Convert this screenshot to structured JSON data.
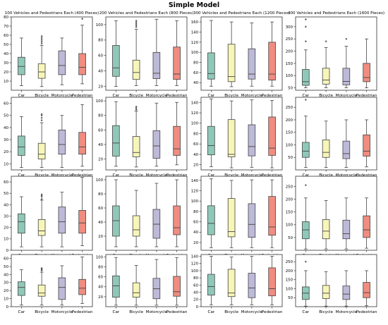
{
  "title": "Simple Model",
  "colors": {
    "Car": "#8fc8b8",
    "Bicycle": "#f7f6b9",
    "Motorcycle": "#bdb9d8",
    "Pedestrian": "#f08c80"
  },
  "chart_data": [
    {
      "type": "box",
      "title": "100 Vehicles and Pedestrians Each (400 Pieces)",
      "row": 0,
      "col": 0,
      "categories": [
        "Car",
        "Bicycle",
        "Motorcycle",
        "Pedestrian"
      ],
      "ylim": [
        0,
        80
      ],
      "yticks": [
        10,
        20,
        30,
        40,
        50,
        60,
        70,
        80
      ],
      "boxes": [
        {
          "whislo": 5,
          "q1": 17,
          "med": 26,
          "q3": 36,
          "whishi": 57,
          "fliers": []
        },
        {
          "whislo": 4,
          "q1": 13,
          "med": 20,
          "q3": 29,
          "whishi": 49,
          "fliers": [
            51,
            53,
            55,
            57,
            59
          ]
        },
        {
          "whislo": 6,
          "q1": 17,
          "med": 27,
          "q3": 43,
          "whishi": 57,
          "fliers": []
        },
        {
          "whislo": 7,
          "q1": 17,
          "med": 25,
          "q3": 40,
          "whishi": 71,
          "fliers": [
            78
          ]
        }
      ]
    },
    {
      "type": "box",
      "title": "200 Vehicles and Pedestrians Each (800 Pieces)",
      "row": 0,
      "col": 1,
      "categories": [
        "Car",
        "Bicycle",
        "Motorcycle",
        "Pedestrian"
      ],
      "ylim": [
        15,
        110
      ],
      "yticks": [
        20,
        40,
        60,
        80,
        100
      ],
      "boxes": [
        {
          "whislo": 20,
          "q1": 33,
          "med": 44,
          "q3": 73,
          "whishi": 105,
          "fliers": []
        },
        {
          "whislo": 21,
          "q1": 29,
          "med": 38,
          "q3": 54,
          "whishi": 94,
          "fliers": [
            97,
            99,
            101,
            103,
            105
          ]
        },
        {
          "whislo": 21,
          "q1": 30,
          "med": 37,
          "q3": 64,
          "whishi": 107,
          "fliers": []
        },
        {
          "whislo": 21,
          "q1": 29,
          "med": 36,
          "q3": 71,
          "whishi": 105,
          "fliers": []
        }
      ]
    },
    {
      "type": "box",
      "title": "300 Vehicles and Pedestrians Each (1200 Pieces)",
      "row": 0,
      "col": 2,
      "categories": [
        "Car",
        "Bicycle",
        "Motorcycle",
        "Pedestrian"
      ],
      "ylim": [
        25,
        170
      ],
      "yticks": [
        40,
        60,
        80,
        100,
        120,
        140,
        160
      ],
      "boxes": [
        {
          "whislo": 33,
          "q1": 47,
          "med": 58,
          "q3": 99,
          "whishi": 163,
          "fliers": []
        },
        {
          "whislo": 32,
          "q1": 42,
          "med": 52,
          "q3": 116,
          "whishi": 160,
          "fliers": []
        },
        {
          "whislo": 33,
          "q1": 47,
          "med": 57,
          "q3": 107,
          "whishi": 158,
          "fliers": []
        },
        {
          "whislo": 33,
          "q1": 45,
          "med": 57,
          "q3": 120,
          "whishi": 160,
          "fliers": []
        }
      ]
    },
    {
      "type": "box",
      "title": "400 Vehicles and Pedestrians Each (1600 Pieces)",
      "row": 0,
      "col": 3,
      "categories": [
        "Car",
        "Bicycle",
        "Motorcycle",
        "Pedestrian"
      ],
      "ylim": [
        40,
        340
      ],
      "yticks": [
        50,
        100,
        150,
        200,
        250,
        300
      ],
      "boxes": [
        {
          "whislo": 50,
          "q1": 60,
          "med": 75,
          "q3": 125,
          "whishi": 205,
          "fliers": [
            240,
            300,
            330
          ]
        },
        {
          "whislo": 50,
          "q1": 65,
          "med": 82,
          "q3": 130,
          "whishi": 215,
          "fliers": [
            240
          ]
        },
        {
          "whislo": 50,
          "q1": 62,
          "med": 76,
          "q3": 130,
          "whishi": 220,
          "fliers": [
            250
          ]
        },
        {
          "whislo": 50,
          "q1": 75,
          "med": 92,
          "q3": 150,
          "whishi": 250,
          "fliers": []
        }
      ]
    },
    {
      "type": "box",
      "title": "",
      "row": 1,
      "col": 0,
      "categories": [
        "Car",
        "Bicycle",
        "Motorcycle",
        "Pedestrian"
      ],
      "ylim": [
        5,
        65
      ],
      "yticks": [
        10,
        20,
        30,
        40,
        50,
        60
      ],
      "boxes": [
        {
          "whislo": 7,
          "q1": 17,
          "med": 24,
          "q3": 33,
          "whishi": 49,
          "fliers": []
        },
        {
          "whislo": 7,
          "q1": 14,
          "med": 18,
          "q3": 27,
          "whishi": 44,
          "fliers": [
            46,
            48,
            50,
            51
          ]
        },
        {
          "whislo": 7,
          "q1": 18,
          "med": 26,
          "q3": 38,
          "whishi": 50,
          "fliers": []
        },
        {
          "whislo": 8,
          "q1": 18,
          "med": 24,
          "q3": 36,
          "whishi": 59,
          "fliers": []
        }
      ]
    },
    {
      "type": "box",
      "title": "",
      "row": 1,
      "col": 1,
      "categories": [
        "Car",
        "Bicycle",
        "Motorcycle",
        "Pedestrian"
      ],
      "ylim": [
        5,
        105
      ],
      "yticks": [
        20,
        40,
        60,
        80,
        100
      ],
      "boxes": [
        {
          "whislo": 10,
          "q1": 24,
          "med": 42,
          "q3": 66,
          "whishi": 99,
          "fliers": []
        },
        {
          "whislo": 9,
          "q1": 23,
          "med": 29,
          "q3": 51,
          "whishi": 86,
          "fliers": [
            88,
            90,
            92
          ]
        },
        {
          "whislo": 10,
          "q1": 21,
          "med": 38,
          "q3": 59,
          "whishi": 97,
          "fliers": []
        },
        {
          "whislo": 12,
          "q1": 25,
          "med": 34,
          "q3": 65,
          "whishi": 98,
          "fliers": []
        }
      ]
    },
    {
      "type": "box",
      "title": "",
      "row": 1,
      "col": 2,
      "categories": [
        "Car",
        "Bicycle",
        "Motorcycle",
        "Pedestrian"
      ],
      "ylim": [
        10,
        150
      ],
      "yticks": [
        20,
        40,
        60,
        80,
        100,
        120,
        140
      ],
      "boxes": [
        {
          "whislo": 16,
          "q1": 39,
          "med": 57,
          "q3": 94,
          "whishi": 147,
          "fliers": []
        },
        {
          "whislo": 14,
          "q1": 35,
          "med": 40,
          "q3": 107,
          "whishi": 143,
          "fliers": []
        },
        {
          "whislo": 15,
          "q1": 37,
          "med": 55,
          "q3": 97,
          "whishi": 145,
          "fliers": []
        },
        {
          "whislo": 14,
          "q1": 38,
          "med": 52,
          "q3": 112,
          "whishi": 144,
          "fliers": []
        }
      ]
    },
    {
      "type": "box",
      "title": "",
      "row": 1,
      "col": 3,
      "categories": [
        "Car",
        "Bicycle",
        "Motorcycle",
        "Pedestrian"
      ],
      "ylim": [
        0,
        290
      ],
      "yticks": [
        50,
        100,
        150,
        200,
        250
      ],
      "boxes": [
        {
          "whislo": 10,
          "q1": 50,
          "med": 75,
          "q3": 110,
          "whishi": 215,
          "fliers": [
            280
          ]
        },
        {
          "whislo": 10,
          "q1": 50,
          "med": 70,
          "q3": 120,
          "whishi": 195,
          "fliers": []
        },
        {
          "whislo": 10,
          "q1": 45,
          "med": 65,
          "q3": 115,
          "whishi": 200,
          "fliers": []
        },
        {
          "whislo": 12,
          "q1": 55,
          "med": 75,
          "q3": 140,
          "whishi": 200,
          "fliers": []
        }
      ]
    },
    {
      "type": "box",
      "title": "",
      "row": 2,
      "col": 0,
      "categories": [
        "Car",
        "Bicycle",
        "Motorcycle",
        "Pedestrian"
      ],
      "ylim": [
        0,
        65
      ],
      "yticks": [
        0,
        10,
        20,
        30,
        40,
        50,
        60
      ],
      "boxes": [
        {
          "whislo": 3,
          "q1": 15,
          "med": 25,
          "q3": 32,
          "whishi": 47,
          "fliers": []
        },
        {
          "whislo": 3,
          "q1": 13,
          "med": 17,
          "q3": 27,
          "whishi": 44,
          "fliers": [
            45,
            47,
            48,
            49
          ]
        },
        {
          "whislo": 3,
          "q1": 15,
          "med": 25,
          "q3": 38,
          "whishi": 51,
          "fliers": []
        },
        {
          "whislo": 4,
          "q1": 15,
          "med": 24,
          "q3": 35,
          "whishi": 64,
          "fliers": []
        }
      ]
    },
    {
      "type": "box",
      "title": "",
      "row": 2,
      "col": 1,
      "categories": [
        "Car",
        "Bicycle",
        "Motorcycle",
        "Pedestrian"
      ],
      "ylim": [
        0,
        105
      ],
      "yticks": [
        20,
        40,
        60,
        80,
        100
      ],
      "boxes": [
        {
          "whislo": 5,
          "q1": 20,
          "med": 42,
          "q3": 63,
          "whishi": 100,
          "fliers": []
        },
        {
          "whislo": 5,
          "q1": 20,
          "med": 29,
          "q3": 49,
          "whishi": 85,
          "fliers": []
        },
        {
          "whislo": 5,
          "q1": 17,
          "med": 37,
          "q3": 58,
          "whishi": 95,
          "fliers": []
        },
        {
          "whislo": 5,
          "q1": 22,
          "med": 32,
          "q3": 63,
          "whishi": 100,
          "fliers": []
        }
      ]
    },
    {
      "type": "box",
      "title": "",
      "row": 2,
      "col": 2,
      "categories": [
        "Car",
        "Bicycle",
        "Motorcycle",
        "Pedestrian"
      ],
      "ylim": [
        5,
        148
      ],
      "yticks": [
        20,
        40,
        60,
        80,
        100,
        120,
        140
      ],
      "boxes": [
        {
          "whislo": 10,
          "q1": 35,
          "med": 57,
          "q3": 91,
          "whishi": 143,
          "fliers": []
        },
        {
          "whislo": 10,
          "q1": 31,
          "med": 41,
          "q3": 105,
          "whishi": 140,
          "fliers": []
        },
        {
          "whislo": 10,
          "q1": 30,
          "med": 55,
          "q3": 95,
          "whishi": 141,
          "fliers": []
        },
        {
          "whislo": 10,
          "q1": 34,
          "med": 50,
          "q3": 109,
          "whishi": 141,
          "fliers": []
        }
      ]
    },
    {
      "type": "box",
      "title": "",
      "row": 2,
      "col": 3,
      "categories": [
        "Car",
        "Bicycle",
        "Motorcycle",
        "Pedestrian"
      ],
      "ylim": [
        0,
        290
      ],
      "yticks": [
        50,
        100,
        150,
        200,
        250
      ],
      "boxes": [
        {
          "whislo": 5,
          "q1": 45,
          "med": 80,
          "q3": 112,
          "whishi": 205,
          "fliers": [
            255
          ]
        },
        {
          "whislo": 5,
          "q1": 45,
          "med": 75,
          "q3": 120,
          "whishi": 195,
          "fliers": []
        },
        {
          "whislo": 5,
          "q1": 45,
          "med": 65,
          "q3": 118,
          "whishi": 205,
          "fliers": []
        },
        {
          "whislo": 8,
          "q1": 50,
          "med": 80,
          "q3": 135,
          "whishi": 205,
          "fliers": []
        }
      ]
    },
    {
      "type": "box",
      "title": "",
      "row": 3,
      "col": 0,
      "categories": [
        "Car",
        "Bicycle",
        "Motorcycle",
        "Pedestrian"
      ],
      "ylim": [
        0,
        65
      ],
      "yticks": [
        0,
        10,
        20,
        30,
        40,
        50,
        60
      ],
      "boxes": [
        {
          "whislo": 2,
          "q1": 14,
          "med": 24,
          "q3": 31,
          "whishi": 46,
          "fliers": []
        },
        {
          "whislo": 2,
          "q1": 13,
          "med": 17,
          "q3": 27,
          "whishi": 43,
          "fliers": [
            45,
            46,
            47,
            48
          ]
        },
        {
          "whislo": 2,
          "q1": 9,
          "med": 24,
          "q3": 36,
          "whishi": 51,
          "fliers": []
        },
        {
          "whislo": 4,
          "q1": 15,
          "med": 23,
          "q3": 34,
          "whishi": 62,
          "fliers": []
        }
      ]
    },
    {
      "type": "box",
      "title": "",
      "row": 3,
      "col": 1,
      "categories": [
        "Car",
        "Bicycle",
        "Motorcycle",
        "Pedestrian"
      ],
      "ylim": [
        0,
        105
      ],
      "yticks": [
        20,
        40,
        60,
        80,
        100
      ],
      "boxes": [
        {
          "whislo": 3,
          "q1": 19,
          "med": 42,
          "q3": 62,
          "whishi": 99,
          "fliers": []
        },
        {
          "whislo": 3,
          "q1": 19,
          "med": 28,
          "q3": 48,
          "whishi": 83,
          "fliers": []
        },
        {
          "whislo": 3,
          "q1": 16,
          "med": 36,
          "q3": 57,
          "whishi": 95,
          "fliers": []
        },
        {
          "whislo": 3,
          "q1": 21,
          "med": 30,
          "q3": 61,
          "whishi": 99,
          "fliers": []
        }
      ]
    },
    {
      "type": "box",
      "title": "",
      "row": 3,
      "col": 2,
      "categories": [
        "Car",
        "Bicycle",
        "Motorcycle",
        "Pedestrian"
      ],
      "ylim": [
        0,
        145
      ],
      "yticks": [
        0,
        20,
        40,
        60,
        80,
        100,
        120,
        140
      ],
      "boxes": [
        {
          "whislo": 5,
          "q1": 32,
          "med": 56,
          "q3": 90,
          "whishi": 140,
          "fliers": []
        },
        {
          "whislo": 5,
          "q1": 28,
          "med": 38,
          "q3": 104,
          "whishi": 138,
          "fliers": []
        },
        {
          "whislo": 5,
          "q1": 25,
          "med": 52,
          "q3": 93,
          "whishi": 140,
          "fliers": []
        },
        {
          "whislo": 5,
          "q1": 30,
          "med": 50,
          "q3": 108,
          "whishi": 140,
          "fliers": []
        }
      ]
    },
    {
      "type": "box",
      "title": "",
      "row": 3,
      "col": 3,
      "categories": [
        "Car",
        "Bicycle",
        "Motorcycle",
        "Pedestrian"
      ],
      "ylim": [
        0,
        290
      ],
      "yticks": [
        50,
        100,
        150,
        200,
        250
      ],
      "boxes": [
        {
          "whislo": 3,
          "q1": 40,
          "med": 75,
          "q3": 110,
          "whishi": 200,
          "fliers": [
            250
          ]
        },
        {
          "whislo": 3,
          "q1": 45,
          "med": 75,
          "q3": 118,
          "whishi": 195,
          "fliers": []
        },
        {
          "whislo": 3,
          "q1": 40,
          "med": 70,
          "q3": 115,
          "whishi": 200,
          "fliers": []
        },
        {
          "whislo": 5,
          "q1": 50,
          "med": 78,
          "q3": 135,
          "whishi": 200,
          "fliers": []
        }
      ]
    }
  ]
}
